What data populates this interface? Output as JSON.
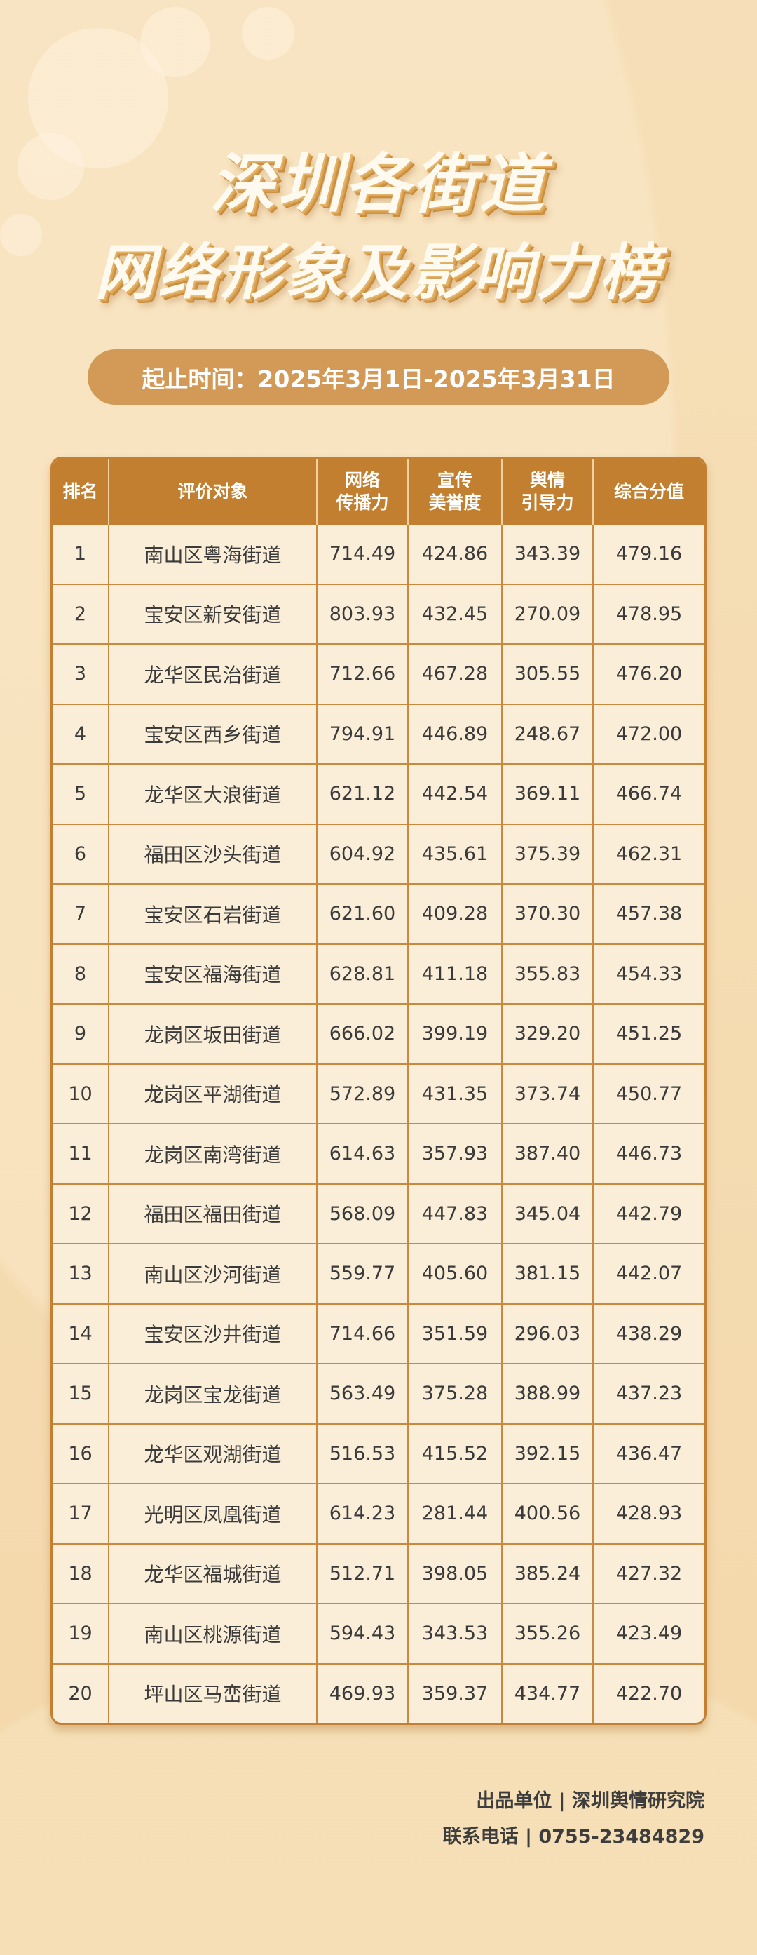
{
  "title": {
    "line1": "深圳各街道",
    "line2": "网络形象及影响力榜"
  },
  "period": "起止时间：2025年3月1日-2025年3月31日",
  "table": {
    "headers": [
      "排名",
      "评价对象",
      "网络\n传播力",
      "宣传\n美誉度",
      "舆情\n引导力",
      "综合分值"
    ],
    "rows": [
      [
        "1",
        "南山区粤海街道",
        "714.49",
        "424.86",
        "343.39",
        "479.16"
      ],
      [
        "2",
        "宝安区新安街道",
        "803.93",
        "432.45",
        "270.09",
        "478.95"
      ],
      [
        "3",
        "龙华区民治街道",
        "712.66",
        "467.28",
        "305.55",
        "476.20"
      ],
      [
        "4",
        "宝安区西乡街道",
        "794.91",
        "446.89",
        "248.67",
        "472.00"
      ],
      [
        "5",
        "龙华区大浪街道",
        "621.12",
        "442.54",
        "369.11",
        "466.74"
      ],
      [
        "6",
        "福田区沙头街道",
        "604.92",
        "435.61",
        "375.39",
        "462.31"
      ],
      [
        "7",
        "宝安区石岩街道",
        "621.60",
        "409.28",
        "370.30",
        "457.38"
      ],
      [
        "8",
        "宝安区福海街道",
        "628.81",
        "411.18",
        "355.83",
        "454.33"
      ],
      [
        "9",
        "龙岗区坂田街道",
        "666.02",
        "399.19",
        "329.20",
        "451.25"
      ],
      [
        "10",
        "龙岗区平湖街道",
        "572.89",
        "431.35",
        "373.74",
        "450.77"
      ],
      [
        "11",
        "龙岗区南湾街道",
        "614.63",
        "357.93",
        "387.40",
        "446.73"
      ],
      [
        "12",
        "福田区福田街道",
        "568.09",
        "447.83",
        "345.04",
        "442.79"
      ],
      [
        "13",
        "南山区沙河街道",
        "559.77",
        "405.60",
        "381.15",
        "442.07"
      ],
      [
        "14",
        "宝安区沙井街道",
        "714.66",
        "351.59",
        "296.03",
        "438.29"
      ],
      [
        "15",
        "龙岗区宝龙街道",
        "563.49",
        "375.28",
        "388.99",
        "437.23"
      ],
      [
        "16",
        "龙华区观湖街道",
        "516.53",
        "415.52",
        "392.15",
        "436.47"
      ],
      [
        "17",
        "光明区凤凰街道",
        "614.23",
        "281.44",
        "400.56",
        "428.93"
      ],
      [
        "18",
        "龙华区福城街道",
        "512.71",
        "398.05",
        "385.24",
        "427.32"
      ],
      [
        "19",
        "南山区桃源街道",
        "594.43",
        "343.53",
        "355.26",
        "423.49"
      ],
      [
        "20",
        "坪山区马峦街道",
        "469.93",
        "359.37",
        "434.77",
        "422.70"
      ]
    ]
  },
  "footer": {
    "producer": "出品单位 | 深圳舆情研究院",
    "contact": "联系电话 | 0755-23484829"
  },
  "colors": {
    "header_bg": "#c17f2f",
    "pill_bg": "#d29a56",
    "cell_bg": "#faeed8",
    "page_bg": "#f5dcb2"
  }
}
